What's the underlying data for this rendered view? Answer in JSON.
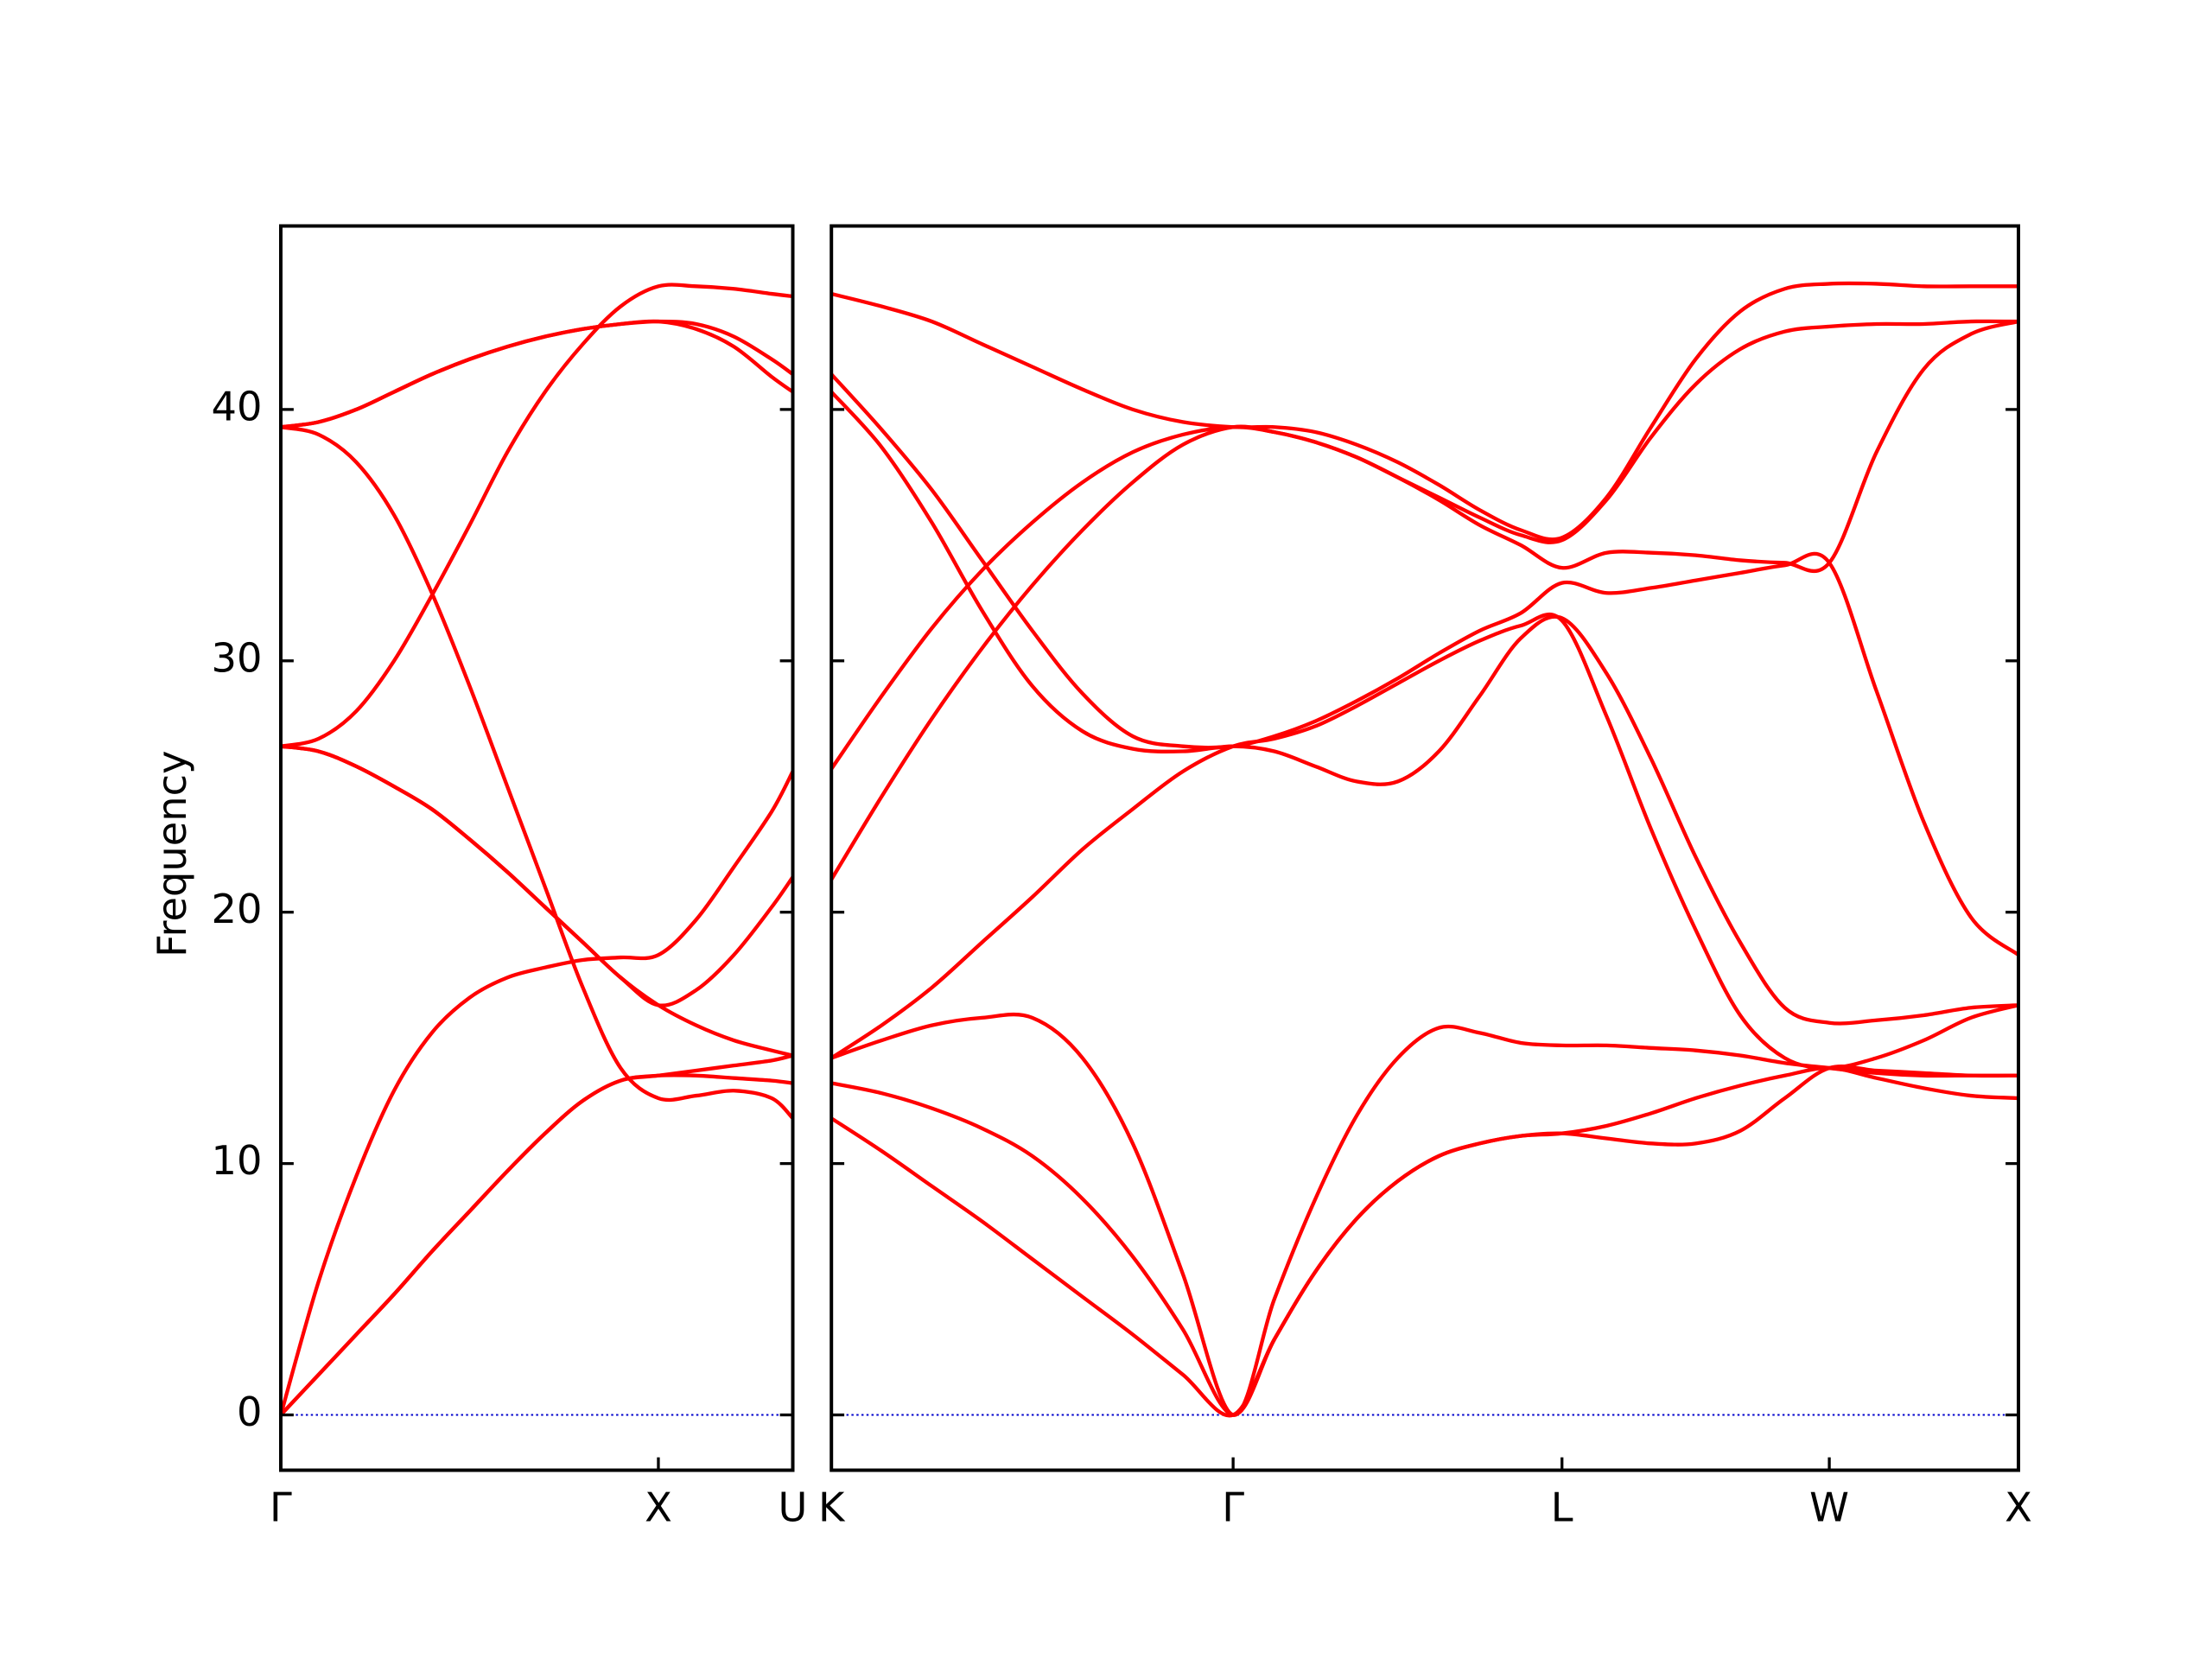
{
  "chart_data": [
    {
      "type": "line",
      "ylabel": "Frequency",
      "x": [
        0,
        0.1,
        0.2,
        0.3,
        0.4,
        0.5,
        0.6,
        0.7,
        0.8,
        0.9,
        1.0,
        1.1,
        1.2,
        1.3,
        1.356
      ],
      "series": [
        {
          "color": "#ff0000",
          "values": [
            0,
            1.6,
            3.2,
            4.8,
            6.5,
            8.1,
            9.7,
            11.2,
            12.5,
            13.3,
            13.5,
            13.7,
            13.9,
            14.1,
            14.3
          ]
        },
        {
          "color": "#ff0000",
          "values": [
            0,
            1.6,
            3.2,
            4.8,
            6.5,
            8.1,
            9.7,
            11.2,
            12.5,
            13.3,
            13.5,
            13.5,
            13.4,
            13.3,
            13.2
          ]
        },
        {
          "color": "#ff0000",
          "values": [
            0,
            5.3,
            9.5,
            12.9,
            15.2,
            16.6,
            17.4,
            17.8,
            18.1,
            18.2,
            18.3,
            19.7,
            21.8,
            24.0,
            25.6
          ]
        },
        {
          "color": "#ff0000",
          "values": [
            26.6,
            26.4,
            25.8,
            25.0,
            24.1,
            22.9,
            21.6,
            20.2,
            18.8,
            17.4,
            16.3,
            16.9,
            18.3,
            20.2,
            21.4
          ]
        },
        {
          "color": "#ff0000",
          "values": [
            26.6,
            26.4,
            25.8,
            25.0,
            24.1,
            22.9,
            21.6,
            20.2,
            18.8,
            17.4,
            16.3,
            15.5,
            14.9,
            14.5,
            14.3
          ]
        },
        {
          "color": "#ff0000",
          "values": [
            26.6,
            26.9,
            28.0,
            30.0,
            32.6,
            35.4,
            38.3,
            40.7,
            42.6,
            44.1,
            44.9,
            44.9,
            44.8,
            44.6,
            44.5
          ]
        },
        {
          "color": "#ff0000",
          "values": [
            39.3,
            39.5,
            40.0,
            40.7,
            41.4,
            42.0,
            42.5,
            42.9,
            43.2,
            43.4,
            43.5,
            43.4,
            42.9,
            42.0,
            41.4
          ]
        },
        {
          "color": "#ff0000",
          "values": [
            39.3,
            39.5,
            40.0,
            40.7,
            41.4,
            42.0,
            42.5,
            42.9,
            43.2,
            43.4,
            43.5,
            43.2,
            42.5,
            41.3,
            40.7
          ]
        },
        {
          "color": "#ff0000",
          "values": [
            39.3,
            39.0,
            37.9,
            35.8,
            32.7,
            29.0,
            25.0,
            21.0,
            17.0,
            13.8,
            12.6,
            12.7,
            12.9,
            12.6,
            11.8
          ]
        }
      ],
      "xlim": [
        0,
        1.356
      ],
      "ylim": [
        -2.2,
        47.3
      ],
      "xticks": [
        {
          "value": 0,
          "label": "Γ"
        },
        {
          "value": 1.0,
          "label": "X"
        },
        {
          "value": 1.356,
          "label": "U"
        }
      ],
      "yticks": [
        0,
        10,
        20,
        30,
        40
      ],
      "hline": 0,
      "hline_color": "#0000cc"
    },
    {
      "type": "line",
      "x": [
        1.356,
        1.489,
        1.622,
        1.755,
        1.888,
        2.021,
        2.154,
        2.287,
        2.42,
        2.529,
        2.638,
        2.747,
        2.856,
        2.965,
        3.073,
        3.182,
        3.291,
        3.409,
        3.527,
        3.645,
        3.763,
        3.881,
        3.999,
        4.124,
        4.249,
        4.374,
        4.5
      ],
      "series": [
        {
          "color": "#ff0000",
          "values": [
            44.6,
            44.1,
            43.5,
            42.6,
            41.7,
            40.8,
            40.0,
            39.5,
            39.3,
            39.3,
            39.1,
            38.6,
            37.9,
            37.0,
            36.0,
            35.2,
            34.9,
            36.5,
            39.3,
            42.0,
            43.9,
            44.8,
            45.0,
            45.0,
            44.9,
            44.9,
            44.9
          ]
        },
        {
          "color": "#ff0000",
          "values": [
            25.7,
            28.6,
            31.3,
            33.6,
            35.5,
            37.1,
            38.3,
            39.0,
            39.3,
            39.1,
            38.7,
            38.1,
            37.3,
            36.5,
            35.7,
            35.0,
            34.8,
            36.4,
            38.9,
            41.0,
            42.4,
            43.1,
            43.3,
            43.4,
            43.4,
            43.5,
            43.5
          ]
        },
        {
          "color": "#ff0000",
          "values": [
            21.3,
            24.6,
            27.7,
            30.5,
            33.0,
            35.2,
            37.1,
            38.6,
            39.3,
            39.1,
            38.7,
            38.1,
            37.3,
            36.4,
            35.4,
            34.6,
            33.7,
            34.3,
            34.3,
            34.2,
            34.0,
            33.9,
            33.9,
            38.3,
            41.6,
            43.0,
            43.5
          ]
        },
        {
          "color": "#ff0000",
          "values": [
            41.4,
            39.2,
            36.8,
            34.0,
            31.2,
            28.7,
            27.0,
            26.6,
            26.6,
            27.0,
            27.6,
            28.4,
            29.3,
            30.3,
            31.2,
            31.9,
            33.1,
            32.7,
            32.9,
            33.2,
            33.5,
            33.8,
            33.9,
            28.8,
            23.6,
            19.8,
            18.3
          ]
        },
        {
          "color": "#ff0000",
          "values": [
            40.7,
            38.5,
            35.5,
            32.0,
            29.0,
            27.2,
            26.5,
            26.4,
            26.6,
            26.4,
            25.8,
            25.2,
            25.2,
            26.4,
            28.6,
            30.9,
            31.7,
            29.5,
            26.1,
            22.2,
            18.8,
            16.2,
            15.6,
            15.7,
            15.9,
            16.2,
            16.3
          ]
        },
        {
          "color": "#ff0000",
          "values": [
            14.2,
            15.5,
            17.0,
            18.8,
            20.6,
            22.5,
            24.1,
            25.6,
            26.6,
            26.9,
            27.4,
            28.2,
            29.1,
            30.0,
            30.8,
            31.4,
            31.6,
            27.8,
            23.3,
            19.3,
            15.9,
            14.2,
            13.8,
            14.2,
            14.9,
            15.8,
            16.3
          ]
        },
        {
          "color": "#ff0000",
          "values": [
            14.2,
            14.9,
            15.5,
            15.8,
            15.8,
            14.2,
            10.8,
            5.6,
            0,
            4.6,
            8.6,
            11.9,
            14.2,
            15.4,
            15.2,
            14.8,
            14.7,
            14.7,
            14.6,
            14.5,
            14.3,
            14.0,
            13.8,
            13.6,
            13.5,
            13.5,
            13.5
          ]
        },
        {
          "color": "#ff0000",
          "values": [
            13.2,
            12.8,
            12.2,
            11.4,
            10.3,
            8.6,
            6.3,
            3.4,
            0,
            3.0,
            5.7,
            7.8,
            9.3,
            10.3,
            10.8,
            11.1,
            11.2,
            11.5,
            12.0,
            12.6,
            13.1,
            13.5,
            13.8,
            13.4,
            13.0,
            12.7,
            12.6
          ]
        },
        {
          "color": "#ff0000",
          "values": [
            11.8,
            10.5,
            9.1,
            7.7,
            6.2,
            4.7,
            3.2,
            1.6,
            0,
            3.0,
            5.7,
            7.8,
            9.3,
            10.3,
            10.8,
            11.1,
            11.2,
            11.0,
            10.8,
            10.8,
            11.3,
            12.6,
            13.8,
            13.7,
            13.6,
            13.5,
            13.5
          ]
        }
      ],
      "xlim": [
        1.356,
        4.5
      ],
      "ylim": [
        -2.2,
        47.3
      ],
      "xticks": [
        {
          "value": 1.356,
          "label": "K"
        },
        {
          "value": 2.42,
          "label": "Γ"
        },
        {
          "value": 3.291,
          "label": "L"
        },
        {
          "value": 3.999,
          "label": "W"
        },
        {
          "value": 4.5,
          "label": "X"
        }
      ],
      "hline": 0,
      "hline_color": "#0000cc"
    }
  ]
}
